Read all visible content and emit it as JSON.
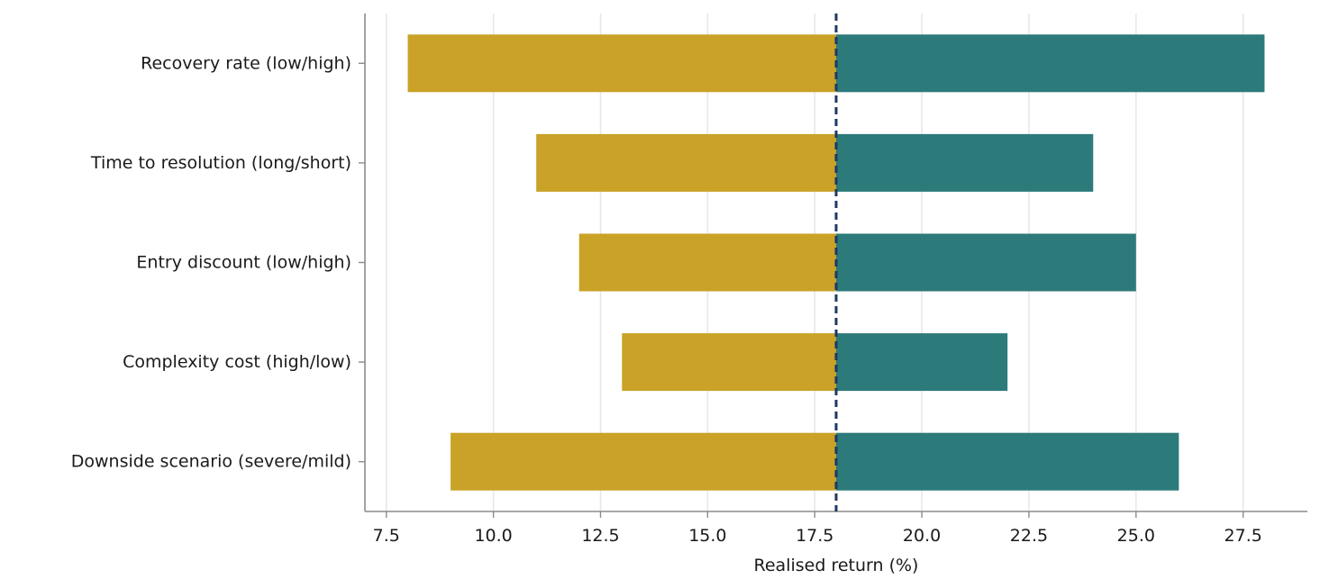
{
  "chart_data": {
    "type": "bar",
    "orientation": "horizontal",
    "chart_style": "tornado",
    "title": "",
    "xlabel": "Realised return (%)",
    "ylabel": "",
    "xlim": [
      7.0,
      29.0
    ],
    "x_ticks": [
      7.5,
      10.0,
      12.5,
      15.0,
      17.5,
      20.0,
      22.5,
      25.0,
      27.5
    ],
    "x_tick_labels": [
      "7.5",
      "10.0",
      "12.5",
      "15.0",
      "17.5",
      "20.0",
      "22.5",
      "25.0",
      "27.5"
    ],
    "grid": "vertical",
    "baseline": 18.0,
    "categories": [
      "Recovery rate (low/high)",
      "Time to resolution (long/short)",
      "Entry discount (low/high)",
      "Complexity cost (high/low)",
      "Downside scenario (severe/mild)"
    ],
    "series": [
      {
        "values": [
          8.0,
          11.0,
          12.0,
          13.0,
          9.0
        ],
        "color": "#c9a227"
      },
      {
        "values": [
          28.0,
          24.0,
          25.0,
          22.0,
          26.0
        ],
        "color": "#2d7a7a"
      }
    ],
    "baseline_color": "#1f3864",
    "grid_color": "#e6e6e6",
    "axis_color": "#8c8c8c"
  }
}
